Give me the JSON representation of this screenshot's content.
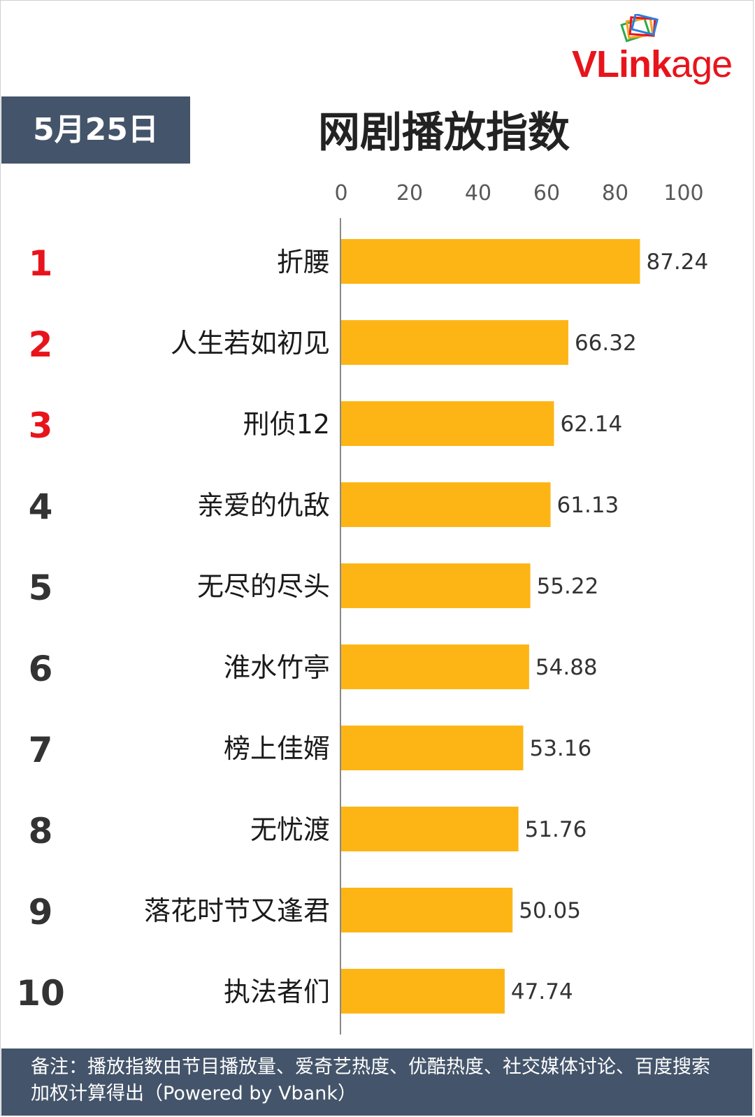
{
  "brand": {
    "logo_text_bold": "VLink",
    "logo_text_rest": "age"
  },
  "header": {
    "date": "5月25日",
    "title": "网剧播放指数"
  },
  "chart_data": {
    "type": "bar",
    "orientation": "horizontal",
    "title": "网剧播放指数",
    "xlim": [
      0,
      100
    ],
    "xticks": [
      0,
      20,
      40,
      60,
      80,
      100
    ],
    "ranks": [
      "1",
      "2",
      "3",
      "4",
      "5",
      "6",
      "7",
      "8",
      "9",
      "10"
    ],
    "categories": [
      "折腰",
      "人生若如初见",
      "刑侦12",
      "亲爱的仇敌",
      "无尽的尽头",
      "淮水竹亭",
      "榜上佳婿",
      "无忧渡",
      "落花时节又逢君",
      "执法者们"
    ],
    "values": [
      87.24,
      66.32,
      62.14,
      61.13,
      55.22,
      54.88,
      53.16,
      51.76,
      50.05,
      47.74
    ],
    "value_labels": [
      "87.24",
      "66.32",
      "62.14",
      "61.13",
      "55.22",
      "54.88",
      "53.16",
      "51.76",
      "50.05",
      "47.74"
    ],
    "colors": {
      "bar": "#FDB515",
      "top_rank": "#E8141C",
      "rank": "#333333",
      "axis": "#888888"
    }
  },
  "footer": {
    "note": "备注：播放指数由节目播放量、爱奇艺热度、优酷热度、社交媒体讨论、百度搜索加权计算得出（Powered by Vbank）"
  },
  "colors": {
    "badge_bg": "#44546A",
    "brand_red": "#E8141C"
  }
}
